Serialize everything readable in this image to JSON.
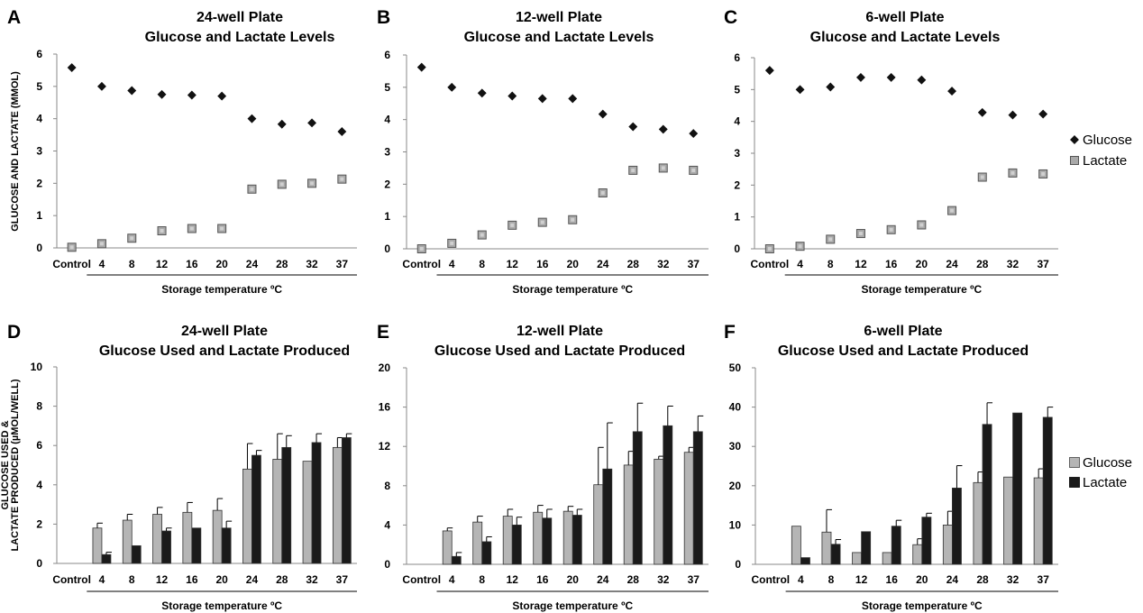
{
  "figure": {
    "legend_top": {
      "glucose": "Glucose",
      "lactate": "Lactate"
    },
    "legend_bottom": {
      "glucose": "Glucose",
      "lactate": "Lactate"
    },
    "ylabel_top": "GLUCOSE AND LACTATE (MMOL)",
    "ylabel_bottom_line1": "GLUCOSE USED &",
    "ylabel_bottom_line2": "LACTATE PRODUCED (µMOL/WELL)"
  },
  "colors": {
    "glucose_marker": "#111111",
    "lactate_marker": "#a9a9a9",
    "glucose_bar": "#b5b5b5",
    "lactate_bar": "#1a1a1a",
    "axis": "#888888"
  },
  "chart_data": [
    {
      "panel": "A",
      "type": "scatter",
      "title_line1": "24-well Plate",
      "title_line2": "Glucose and Lactate Levels",
      "categories": [
        "Control",
        "4",
        "8",
        "12",
        "16",
        "20",
        "24",
        "28",
        "32",
        "37"
      ],
      "xlabel": "Storage temperature ºC",
      "ylim": [
        0,
        6
      ],
      "yticks": [
        0,
        1,
        2,
        3,
        4,
        5,
        6
      ],
      "series": [
        {
          "name": "Glucose",
          "values": [
            5.58,
            5.0,
            4.87,
            4.75,
            4.73,
            4.7,
            4.0,
            3.83,
            3.87,
            3.6
          ]
        },
        {
          "name": "Lactate",
          "values": [
            0.02,
            0.13,
            0.3,
            0.53,
            0.6,
            0.6,
            1.82,
            1.97,
            2.0,
            2.13
          ]
        }
      ]
    },
    {
      "panel": "B",
      "type": "scatter",
      "title_line1": "12-well Plate",
      "title_line2": "Glucose and Lactate Levels",
      "categories": [
        "Control",
        "4",
        "8",
        "12",
        "16",
        "20",
        "24",
        "28",
        "32",
        "37"
      ],
      "xlabel": "Storage temperature ºC",
      "ylim": [
        0,
        6
      ],
      "yticks": [
        0,
        1,
        2,
        3,
        4,
        5,
        6
      ],
      "series": [
        {
          "name": "Glucose",
          "values": [
            5.62,
            5.0,
            4.82,
            4.73,
            4.65,
            4.65,
            4.17,
            3.78,
            3.7,
            3.57
          ]
        },
        {
          "name": "Lactate",
          "values": [
            0.0,
            0.17,
            0.43,
            0.73,
            0.82,
            0.9,
            1.73,
            2.43,
            2.5,
            2.43
          ]
        }
      ]
    },
    {
      "panel": "C",
      "type": "scatter",
      "title_line1": "6-well Plate",
      "title_line2": "Glucose and Lactate Levels",
      "categories": [
        "Control",
        "4",
        "8",
        "12",
        "16",
        "20",
        "24",
        "28",
        "32",
        "37"
      ],
      "xlabel": "Storage temperature ºC",
      "ylim": [
        0,
        6
      ],
      "yticks": [
        0,
        1,
        2,
        3,
        4,
        5,
        6
      ],
      "series": [
        {
          "name": "Glucose",
          "values": [
            5.6,
            5.0,
            5.08,
            5.38,
            5.38,
            5.3,
            4.95,
            4.28,
            4.2,
            4.23
          ]
        },
        {
          "name": "Lactate",
          "values": [
            0.0,
            0.08,
            0.3,
            0.48,
            0.6,
            0.75,
            1.2,
            2.25,
            2.38,
            2.35
          ]
        }
      ]
    },
    {
      "panel": "D",
      "type": "bar",
      "title_line1": "24-well Plate",
      "title_line2": "Glucose Used and Lactate Produced",
      "categories": [
        "Control",
        "4",
        "8",
        "12",
        "16",
        "20",
        "24",
        "28",
        "32",
        "37"
      ],
      "xlabel": "Storage temperature ºC",
      "ylim": [
        0,
        10
      ],
      "yticks": [
        0,
        2,
        4,
        6,
        8,
        10
      ],
      "series": [
        {
          "name": "Glucose",
          "values": [
            0,
            1.8,
            2.2,
            2.5,
            2.6,
            2.7,
            4.8,
            5.3,
            5.2,
            5.9
          ],
          "errors": [
            0,
            0.25,
            0.3,
            0.35,
            0.5,
            0.6,
            1.3,
            1.3,
            0,
            0.5
          ]
        },
        {
          "name": "Lactate",
          "values": [
            0,
            0.45,
            0.9,
            1.65,
            1.8,
            1.8,
            5.5,
            5.9,
            6.15,
            6.4
          ],
          "errors": [
            0,
            0.12,
            0,
            0.15,
            0,
            0.35,
            0.25,
            0.6,
            0.45,
            0.2
          ]
        }
      ]
    },
    {
      "panel": "E",
      "type": "bar",
      "title_line1": "12-well Plate",
      "title_line2": "Glucose Used and Lactate Produced",
      "categories": [
        "Control",
        "4",
        "8",
        "12",
        "16",
        "20",
        "24",
        "28",
        "32",
        "37"
      ],
      "xlabel": "Storage temperature ºC",
      "ylim": [
        0,
        20
      ],
      "yticks": [
        0,
        4,
        8,
        12,
        16,
        20
      ],
      "series": [
        {
          "name": "Glucose",
          "values": [
            0,
            3.4,
            4.3,
            4.9,
            5.3,
            5.4,
            8.1,
            10.1,
            10.7,
            11.4
          ],
          "errors": [
            0,
            0.3,
            0.6,
            0.7,
            0.7,
            0.5,
            3.8,
            1.4,
            0.3,
            0.5
          ]
        },
        {
          "name": "Lactate",
          "values": [
            0,
            0.8,
            2.3,
            4.0,
            4.7,
            5.0,
            9.7,
            13.5,
            14.1,
            13.5
          ],
          "errors": [
            0,
            0.4,
            0.5,
            0.8,
            0.9,
            0.6,
            4.7,
            2.9,
            2.0,
            1.6
          ]
        }
      ]
    },
    {
      "panel": "F",
      "type": "bar",
      "title_line1": "6-well Plate",
      "title_line2": "Glucose Used and Lactate Produced",
      "categories": [
        "Control",
        "4",
        "8",
        "12",
        "16",
        "20",
        "24",
        "28",
        "32",
        "37"
      ],
      "xlabel": "Storage temperature ºC",
      "ylim": [
        0,
        50
      ],
      "yticks": [
        0,
        10,
        20,
        30,
        40,
        50
      ],
      "series": [
        {
          "name": "Glucose",
          "values": [
            0,
            9.7,
            8.2,
            3.0,
            3.0,
            5.0,
            10.0,
            20.8,
            22.2,
            22.0
          ],
          "errors": [
            0,
            0,
            5.7,
            0,
            0,
            1.5,
            3.5,
            2.7,
            0,
            2.3
          ]
        },
        {
          "name": "Lactate",
          "values": [
            0,
            1.7,
            5.1,
            8.3,
            9.7,
            12.0,
            19.4,
            35.6,
            38.5,
            37.4
          ],
          "errors": [
            0,
            0,
            1.2,
            0,
            1.5,
            1.0,
            5.7,
            5.5,
            0,
            2.6
          ]
        }
      ]
    }
  ]
}
